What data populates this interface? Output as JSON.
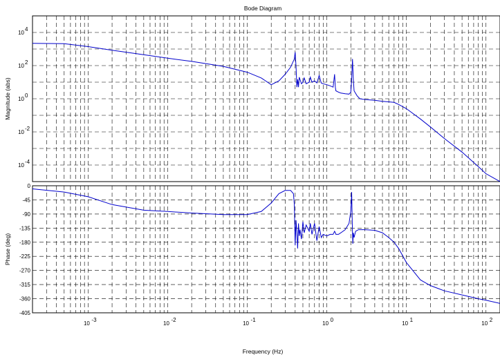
{
  "chart_data": {
    "type": "line",
    "title": "Bode Diagram",
    "xlabel": "Frequency  (Hz)",
    "x_scale": "log",
    "xlim": [
      0.0002,
      150
    ],
    "x_ticks": [
      {
        "value": 0.001,
        "base": "10",
        "exp": "-3"
      },
      {
        "value": 0.01,
        "base": "10",
        "exp": "-2"
      },
      {
        "value": 0.1,
        "base": "10",
        "exp": "-1"
      },
      {
        "value": 1,
        "base": "10",
        "exp": "0"
      },
      {
        "value": 10,
        "base": "10",
        "exp": "1"
      },
      {
        "value": 100,
        "base": "10",
        "exp": "2"
      }
    ],
    "grid": true,
    "magnitude": {
      "ylabel": "Magnitude (abs)",
      "y_scale": "log",
      "ylim": [
        1e-05,
        100000
      ],
      "y_ticks": [
        {
          "value": 0.0001,
          "base": "10",
          "exp": "-4"
        },
        {
          "value": 0.01,
          "base": "10",
          "exp": "-2"
        },
        {
          "value": 1,
          "base": "10",
          "exp": "0"
        },
        {
          "value": 100,
          "base": "10",
          "exp": "2"
        },
        {
          "value": 10000,
          "base": "10",
          "exp": "4"
        }
      ],
      "color": "#0000cc",
      "x": [
        0.0002,
        0.0005,
        0.001,
        0.002,
        0.005,
        0.01,
        0.02,
        0.05,
        0.1,
        0.15,
        0.2,
        0.25,
        0.3,
        0.35,
        0.39,
        0.4,
        0.41,
        0.42,
        0.43,
        0.44,
        0.45,
        0.48,
        0.5,
        0.52,
        0.55,
        0.6,
        0.62,
        0.65,
        0.7,
        0.75,
        0.8,
        0.85,
        0.9,
        1.0,
        1.1,
        1.2,
        1.25,
        1.28,
        1.3,
        1.4,
        1.5,
        1.7,
        1.9,
        2.0,
        2.05,
        2.1,
        2.15,
        2.2,
        2.4,
        2.6,
        3.0,
        4.0,
        5.0,
        6.0,
        7.0,
        8.0,
        10,
        15,
        20,
        30,
        50,
        80,
        100,
        150
      ],
      "y": [
        2200,
        2100,
        1400,
        850,
        450,
        280,
        180,
        90,
        40,
        18,
        7,
        12,
        30,
        80,
        250,
        650,
        80,
        5,
        15,
        5,
        20,
        8,
        10,
        18,
        8,
        10,
        20,
        10,
        12,
        9,
        25,
        9,
        8,
        7,
        6,
        5,
        30,
        5,
        3,
        2.5,
        2.2,
        2.0,
        1.9,
        2.5,
        15,
        250,
        15,
        3,
        1.5,
        1.0,
        0.9,
        0.8,
        0.7,
        0.65,
        0.6,
        0.45,
        0.25,
        0.06,
        0.02,
        0.004,
        0.0006,
        8e-05,
        3e-05,
        1e-05
      ]
    },
    "phase": {
      "ylabel": "Phase (deg)",
      "y_scale": "linear",
      "ylim": [
        -405,
        0
      ],
      "y_ticks": [
        0,
        -45,
        -90,
        -135,
        -180,
        -225,
        -270,
        -315,
        -360,
        -405
      ],
      "color": "#0000cc",
      "x": [
        0.0002,
        0.0005,
        0.001,
        0.002,
        0.005,
        0.01,
        0.02,
        0.05,
        0.1,
        0.15,
        0.2,
        0.25,
        0.3,
        0.35,
        0.38,
        0.39,
        0.4,
        0.41,
        0.42,
        0.43,
        0.44,
        0.45,
        0.46,
        0.48,
        0.5,
        0.52,
        0.55,
        0.6,
        0.62,
        0.65,
        0.7,
        0.75,
        0.8,
        0.85,
        0.9,
        1.0,
        1.1,
        1.2,
        1.25,
        1.28,
        1.3,
        1.4,
        1.5,
        1.7,
        1.9,
        2.0,
        2.05,
        2.1,
        2.12,
        2.15,
        2.2,
        2.3,
        2.5,
        3,
        4,
        5,
        6,
        7,
        8,
        10,
        15,
        20,
        30,
        50,
        80,
        100,
        150
      ],
      "y": [
        -10,
        -20,
        -35,
        -60,
        -78,
        -82,
        -87,
        -92,
        -92,
        -82,
        -55,
        -25,
        -15,
        -15,
        -25,
        -60,
        -190,
        -110,
        -150,
        -200,
        -120,
        -160,
        -140,
        -170,
        -115,
        -150,
        -125,
        -145,
        -120,
        -155,
        -120,
        -175,
        -130,
        -165,
        -155,
        -160,
        -155,
        -155,
        -145,
        -150,
        -155,
        -155,
        -150,
        -140,
        -120,
        -80,
        -20,
        -150,
        -185,
        -150,
        -165,
        -145,
        -140,
        -140,
        -142,
        -150,
        -165,
        -180,
        -200,
        -245,
        -300,
        -318,
        -335,
        -348,
        -360,
        -365,
        -375
      ]
    }
  }
}
